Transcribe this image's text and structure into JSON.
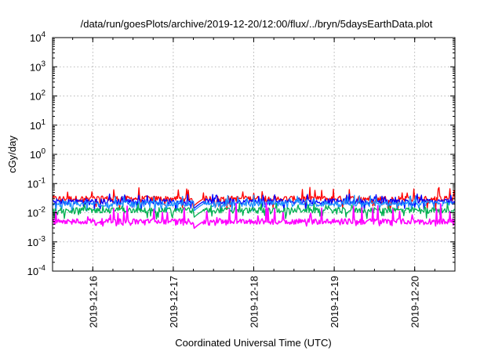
{
  "chart_data": {
    "type": "line",
    "title": "/data/run/goesPlots/archive/2019-12-20/12:00/flux/../bryn/5daysEarthData.plot",
    "xlabel": "Coordinated Universal Time (UTC)",
    "ylabel": "cGy/day",
    "yscale": "log",
    "ylim": [
      0.0001,
      10000
    ],
    "y_ticks": [
      {
        "value": 0.0001,
        "base": "10",
        "exp": "-4"
      },
      {
        "value": 0.001,
        "base": "10",
        "exp": "-3"
      },
      {
        "value": 0.01,
        "base": "10",
        "exp": "-2"
      },
      {
        "value": 0.1,
        "base": "10",
        "exp": "-1"
      },
      {
        "value": 1,
        "base": "10",
        "exp": "0"
      },
      {
        "value": 10,
        "base": "10",
        "exp": "1"
      },
      {
        "value": 100,
        "base": "10",
        "exp": "2"
      },
      {
        "value": 1000,
        "base": "10",
        "exp": "3"
      },
      {
        "value": 10000,
        "base": "10",
        "exp": "4"
      }
    ],
    "xlim": [
      "2019-12-15T12:00",
      "2019-12-20T12:00"
    ],
    "x_ticks": [
      "2019-12-16",
      "2019-12-17",
      "2019-12-18",
      "2019-12-19",
      "2019-12-20"
    ],
    "grid": true,
    "data_gap": [
      "2019-12-17T06:00",
      "2019-12-17T09:00"
    ],
    "series": [
      {
        "color": "#ff0000",
        "base": 0.03,
        "spike_max": 0.075,
        "dip_min": 0.012,
        "segments": [
          [
            "2019-12-15T12:00",
            0.03
          ],
          [
            "2019-12-17T06:00",
            0.03
          ],
          [
            "2019-12-17T09:00",
            0.03
          ],
          [
            "2019-12-20T12:00",
            0.03
          ]
        ]
      },
      {
        "color": "#0000ff",
        "base": 0.024,
        "spike_max": 0.045,
        "dip_min": 0.012,
        "segments": [
          [
            "2019-12-15T12:00",
            0.024
          ],
          [
            "2019-12-17T06:00",
            0.024
          ],
          [
            "2019-12-17T09:00",
            0.024
          ],
          [
            "2019-12-20T12:00",
            0.024
          ]
        ]
      },
      {
        "color": "#1e90ff",
        "base": 0.02,
        "spike_max": 0.04,
        "dip_min": 0.01,
        "segments": [
          [
            "2019-12-15T12:00",
            0.02
          ],
          [
            "2019-12-17T06:00",
            0.02
          ],
          [
            "2019-12-17T09:00",
            0.02
          ],
          [
            "2019-12-20T12:00",
            0.02
          ]
        ]
      },
      {
        "color": "#00b050",
        "base": 0.012,
        "spike_max": 0.022,
        "dip_min": 0.006,
        "segments": [
          [
            "2019-12-15T12:00",
            0.012
          ],
          [
            "2019-12-17T06:00",
            0.012
          ],
          [
            "2019-12-17T09:00",
            0.012
          ],
          [
            "2019-12-20T12:00",
            0.012
          ]
        ]
      },
      {
        "color": "#ff00ff",
        "base": 0.005,
        "spike_max": 0.022,
        "dip_min": 0.0035,
        "segments": [
          [
            "2019-12-15T12:00",
            0.005
          ],
          [
            "2019-12-17T06:00",
            0.005
          ],
          [
            "2019-12-17T09:00",
            0.005
          ],
          [
            "2019-12-20T12:00",
            0.005
          ]
        ]
      }
    ]
  }
}
